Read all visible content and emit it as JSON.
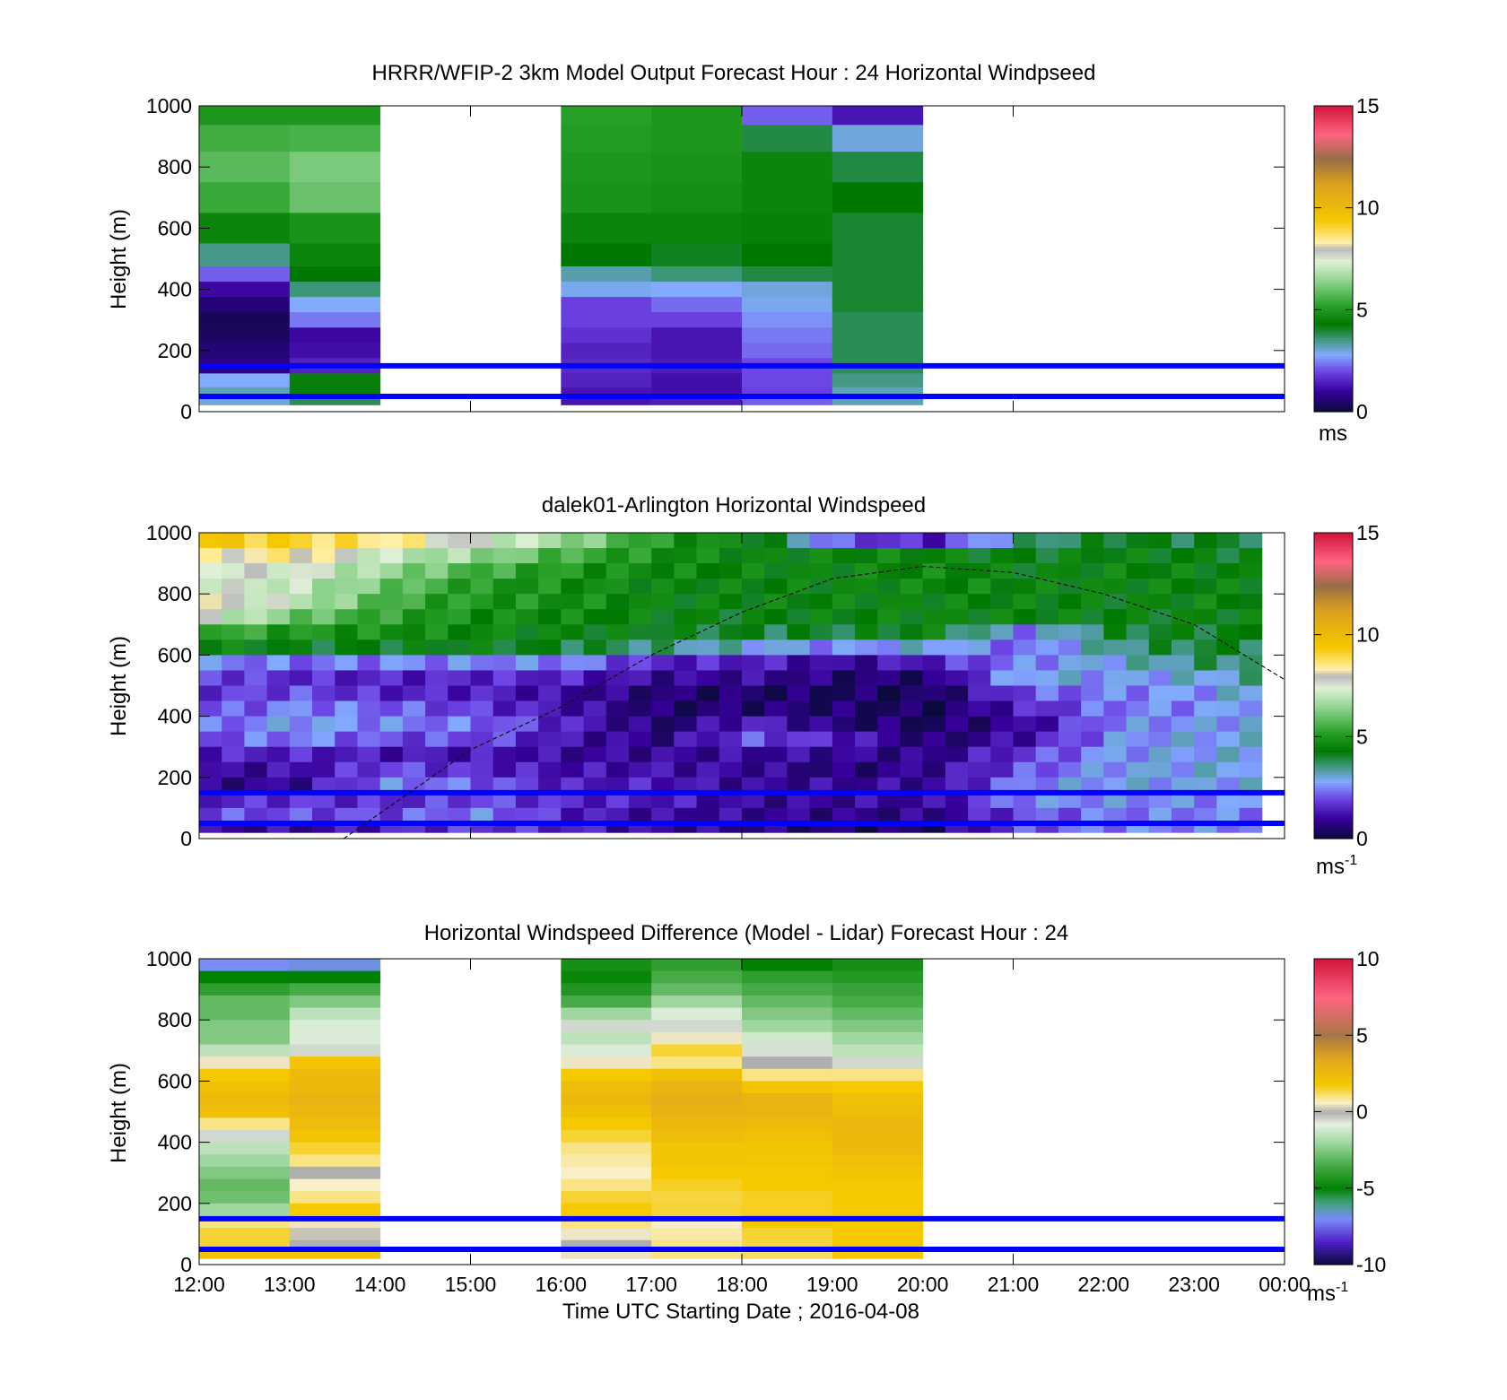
{
  "chart_data": [
    {
      "type": "heatmap",
      "title": "HRRR/WFIP-2 3km Model Output   Forecast Hour : 24 Horizontal Windpseed",
      "ylabel": "Height (m)",
      "ylim": [
        0,
        1000
      ],
      "yticks": [
        "0",
        "200",
        "400",
        "600",
        "800",
        "1000"
      ],
      "xlim_hours": [
        12,
        24
      ],
      "x_hours": [
        12,
        13,
        16,
        17,
        18,
        19
      ],
      "column_width_hours": 1,
      "z_heights_m": [
        975,
        900,
        800,
        700,
        600,
        500,
        450,
        400,
        350,
        300,
        250,
        200,
        150,
        100,
        60,
        35
      ],
      "values": [
        [
          5.0,
          5.0,
          5.2,
          5.0,
          2.2,
          1.3
        ],
        [
          5.5,
          5.6,
          5.1,
          5.0,
          3.9,
          3.0
        ],
        [
          5.8,
          6.2,
          5.0,
          4.9,
          4.6,
          3.9
        ],
        [
          5.4,
          6.0,
          4.9,
          4.8,
          4.6,
          4.3
        ],
        [
          4.6,
          4.9,
          4.6,
          4.6,
          4.5,
          4.0
        ],
        [
          3.5,
          4.6,
          4.3,
          4.1,
          4.3,
          4.0
        ],
        [
          2.2,
          4.3,
          3.3,
          3.6,
          3.9,
          4.0
        ],
        [
          1.1,
          3.6,
          2.9,
          2.8,
          3.0,
          4.0
        ],
        [
          0.6,
          2.8,
          1.9,
          2.3,
          2.9,
          4.0
        ],
        [
          0.3,
          2.4,
          1.9,
          1.9,
          2.6,
          3.8
        ],
        [
          0.4,
          1.1,
          1.7,
          1.3,
          2.4,
          3.8
        ],
        [
          0.6,
          1.2,
          1.5,
          1.3,
          2.3,
          3.8
        ],
        [
          0.8,
          1.5,
          1.6,
          1.4,
          2.0,
          3.8
        ],
        [
          2.8,
          4.5,
          1.5,
          1.2,
          2.0,
          3.5
        ],
        [
          3.2,
          4.2,
          1.3,
          1.2,
          1.9,
          3.2
        ],
        [
          3.0,
          3.8,
          1.3,
          1.4,
          2.2,
          3.2
        ]
      ],
      "reference_lines_m": [
        150,
        50
      ],
      "colorbar": {
        "min": 0,
        "max": 15,
        "ticks": [
          "0",
          "5",
          "10",
          "15"
        ],
        "label": "ms"
      }
    },
    {
      "type": "heatmap",
      "title": "dalek01-Arlington  Horizontal Windspeed",
      "ylabel": "Height (m)",
      "ylim": [
        0,
        1000
      ],
      "yticks": [
        "0",
        "200",
        "400",
        "600",
        "800",
        "1000"
      ],
      "xlim_hours": [
        12,
        24
      ],
      "time_start_hour": 12,
      "time_step_hours": 0.25,
      "columns": 47,
      "z_heights_m": [
        975,
        925,
        875,
        825,
        775,
        725,
        675,
        625,
        575,
        525,
        475,
        425,
        375,
        325,
        275,
        225,
        175,
        125,
        75,
        25
      ],
      "key_profiles": [
        {
          "hour": 12,
          "values": [
            9.5,
            8.0,
            7.5,
            7.5,
            8.0,
            7.5,
            5.5,
            4.5,
            2.5,
            2.0,
            1.8,
            2.0,
            2.2,
            2.0,
            1.5,
            1.0,
            0.8,
            1.5,
            2.0,
            1.0
          ]
        },
        {
          "hour": 13,
          "values": [
            9.0,
            8.5,
            7.5,
            7.0,
            7.0,
            6.0,
            5.0,
            4.2,
            2.3,
            1.6,
            2.0,
            2.5,
            2.8,
            2.5,
            1.5,
            1.2,
            1.0,
            1.8,
            2.0,
            1.0
          ]
        },
        {
          "hour": 14,
          "values": [
            8.5,
            7.0,
            6.5,
            6.0,
            5.5,
            5.2,
            4.8,
            4.2,
            2.5,
            1.5,
            1.5,
            2.2,
            2.5,
            2.0,
            1.3,
            2.0,
            2.5,
            1.6,
            2.0,
            1.5
          ]
        },
        {
          "hour": 15,
          "values": [
            7.5,
            6.5,
            5.5,
            5.0,
            5.0,
            4.8,
            4.6,
            4.3,
            2.5,
            1.6,
            1.5,
            1.8,
            2.3,
            2.0,
            1.3,
            1.6,
            2.2,
            2.0,
            2.5,
            1.8
          ]
        },
        {
          "hour": 16,
          "values": [
            6.5,
            5.5,
            5.0,
            4.8,
            4.8,
            4.6,
            4.4,
            4.0,
            2.5,
            1.5,
            1.0,
            1.2,
            1.5,
            1.2,
            1.0,
            1.2,
            1.4,
            1.6,
            1.5,
            1.5
          ]
        },
        {
          "hour": 17,
          "values": [
            5.0,
            4.8,
            4.6,
            4.5,
            4.5,
            4.4,
            4.2,
            3.5,
            1.5,
            1.0,
            0.6,
            0.5,
            0.5,
            0.8,
            1.0,
            1.2,
            1.4,
            1.4,
            1.0,
            1.0
          ]
        },
        {
          "hour": 18,
          "values": [
            4.5,
            4.5,
            4.5,
            4.4,
            4.4,
            4.3,
            4.0,
            3.0,
            1.5,
            1.0,
            0.5,
            0.6,
            1.5,
            2.0,
            1.0,
            1.0,
            1.0,
            1.0,
            1.0,
            0.8
          ]
        },
        {
          "hour": 19,
          "values": [
            2.0,
            4.5,
            4.5,
            4.5,
            4.5,
            4.4,
            4.0,
            2.5,
            1.0,
            0.6,
            0.4,
            0.5,
            0.6,
            1.5,
            1.0,
            0.6,
            1.0,
            1.0,
            0.8,
            0.5
          ]
        },
        {
          "hour": 20,
          "values": [
            1.5,
            4.5,
            4.6,
            4.6,
            4.5,
            4.5,
            4.4,
            3.0,
            1.5,
            0.6,
            0.4,
            0.3,
            0.4,
            0.5,
            0.8,
            1.0,
            1.0,
            1.0,
            0.8,
            0.5
          ]
        },
        {
          "hour": 21,
          "values": [
            3.5,
            4.2,
            4.4,
            4.5,
            4.4,
            4.4,
            2.5,
            2.2,
            2.5,
            3.0,
            2.0,
            1.5,
            1.0,
            1.2,
            1.8,
            2.0,
            2.5,
            2.6,
            2.0,
            2.0
          ]
        },
        {
          "hour": 22,
          "values": [
            4.2,
            4.4,
            4.5,
            4.5,
            4.4,
            4.3,
            4.0,
            3.5,
            3.0,
            2.7,
            2.5,
            2.4,
            2.5,
            2.6,
            2.7,
            2.8,
            2.8,
            2.6,
            2.4,
            2.5
          ]
        },
        {
          "hour": 23,
          "values": [
            4.0,
            4.3,
            4.4,
            4.4,
            4.5,
            4.4,
            4.2,
            4.0,
            3.6,
            3.0,
            2.7,
            2.6,
            2.7,
            2.8,
            2.8,
            2.9,
            2.8,
            2.6,
            2.5,
            2.5
          ]
        },
        {
          "hour": 23.75,
          "values": [
            4.0,
            4.2,
            4.3,
            4.4,
            4.4,
            4.3,
            4.2,
            4.0,
            3.8,
            3.5,
            3.2,
            3.0,
            3.0,
            3.0,
            3.0,
            3.0,
            2.9,
            2.6,
            2.5,
            2.5
          ]
        }
      ],
      "dashed_curve": {
        "x_hours": [
          13.6,
          15,
          16,
          17,
          18,
          19,
          20,
          21,
          22,
          23,
          24
        ],
        "y_m": [
          0,
          290,
          430,
          600,
          740,
          850,
          890,
          870,
          800,
          700,
          520
        ]
      },
      "reference_lines_m": [
        150,
        50
      ],
      "colorbar": {
        "min": 0,
        "max": 15,
        "ticks": [
          "0",
          "5",
          "10",
          "15"
        ],
        "label": "ms",
        "label_sup": "-1"
      }
    },
    {
      "type": "heatmap",
      "title": "Horizontal Windspeed Difference (Model - Lidar) Forecast Hour : 24",
      "ylabel": "Height (m)",
      "xlabel": "Time UTC  Starting Date ; 2016-04-08",
      "ylim": [
        0,
        1000
      ],
      "yticks": [
        "0",
        "200",
        "400",
        "600",
        "800",
        "1000"
      ],
      "xlim_hours": [
        12,
        24
      ],
      "xticks": [
        "12:00",
        "13:00",
        "14:00",
        "15:00",
        "16:00",
        "17:00",
        "18:00",
        "19:00",
        "20:00",
        "21:00",
        "22:00",
        "23:00",
        "00:00"
      ],
      "x_hours": [
        12,
        13,
        16,
        17,
        18,
        19
      ],
      "column_width_hours": 1,
      "z_heights_m": [
        980,
        940,
        900,
        860,
        820,
        780,
        740,
        700,
        660,
        620,
        580,
        540,
        500,
        460,
        420,
        380,
        340,
        300,
        260,
        220,
        180,
        140,
        100,
        60,
        30
      ],
      "values": [
        [
          -7.0,
          -6.8,
          -4.5,
          -4.0,
          -5.0
        ],
        [
          -5.0,
          -5.0,
          -4.8,
          -3.5,
          -4.0
        ],
        [
          -4.0,
          -3.5,
          -4.3,
          -3.0,
          -3.5
        ],
        [
          -3.0,
          -2.5,
          -3.5,
          -2.0,
          -3.0
        ],
        [
          -3.0,
          -1.5,
          -2.0,
          -1.0,
          -2.5
        ],
        [
          -2.5,
          -1.0,
          -0.5,
          -0.5,
          -2.0
        ],
        [
          -2.5,
          -1.0,
          -1.5,
          0.5,
          -1.2
        ],
        [
          -1.5,
          -0.5,
          -1.0,
          1.5,
          -0.6
        ],
        [
          0.5,
          2.0,
          0.5,
          1.0,
          0.0
        ],
        [
          1.8,
          2.5,
          1.8,
          2.2,
          1.0
        ],
        [
          2.2,
          2.6,
          2.4,
          2.8,
          2.0
        ],
        [
          2.5,
          2.8,
          2.6,
          3.0,
          2.8
        ],
        [
          2.2,
          2.6,
          2.2,
          2.8,
          2.8
        ],
        [
          1.0,
          2.4,
          1.8,
          2.6,
          2.5
        ],
        [
          -0.5,
          2.0,
          1.5,
          2.4,
          2.2
        ],
        [
          -1.5,
          1.5,
          1.0,
          2.0,
          2.0
        ],
        [
          -2.0,
          1.0,
          0.8,
          2.0,
          1.9
        ],
        [
          -2.5,
          0.0,
          0.6,
          1.8,
          1.8
        ],
        [
          -3.0,
          0.6,
          1.0,
          1.6,
          1.8
        ],
        [
          -2.8,
          1.0,
          1.5,
          1.4,
          1.6
        ],
        [
          -2.0,
          1.8,
          1.8,
          1.5,
          1.6
        ],
        [
          1.0,
          0.5,
          1.0,
          0.6,
          1.8
        ],
        [
          1.5,
          0.2,
          0.5,
          0.8,
          1.5
        ],
        [
          1.5,
          0.0,
          0.0,
          1.0,
          1.4
        ],
        [
          2.0,
          2.0,
          0.5,
          1.0,
          1.2
        ]
      ],
      "values_hour_19": [
        -4.5,
        -4.2,
        -3.8,
        -3.5,
        -3.0,
        -2.5,
        -2.0,
        -1.5,
        -0.5,
        1.0,
        1.8,
        2.2,
        2.4,
        2.6,
        2.6,
        2.5,
        2.2,
        2.0,
        1.8,
        1.8,
        1.8,
        1.8,
        1.8,
        1.8,
        1.8
      ],
      "reference_lines_m": [
        150,
        50
      ],
      "colorbar": {
        "min": -10,
        "max": 10,
        "ticks": [
          "-10",
          "-5",
          "0",
          "5",
          "10"
        ],
        "label": "ms",
        "label_sup": "-1"
      }
    }
  ]
}
